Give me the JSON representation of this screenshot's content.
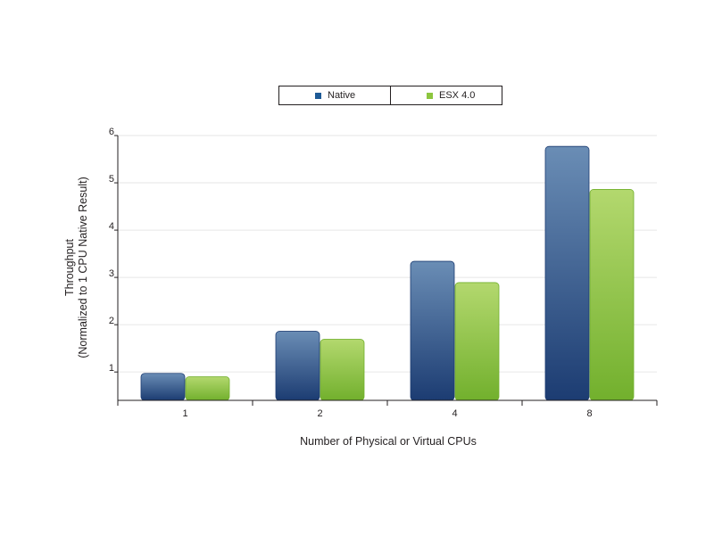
{
  "chart_data": {
    "type": "bar",
    "categories": [
      "1",
      "2",
      "4",
      "8"
    ],
    "series": [
      {
        "name": "Native",
        "values": [
          0.97,
          1.86,
          3.34,
          5.77
        ]
      },
      {
        "name": "ESX 4.0",
        "values": [
          0.9,
          1.69,
          2.89,
          4.86
        ]
      }
    ],
    "xlabel": "Number of Physical or Virtual CPUs",
    "ylabel_lines": [
      "Throughput",
      "(Normalized to 1 CPU Native Result)"
    ],
    "ylim": [
      0.4,
      6
    ],
    "yticks": [
      "1",
      "2",
      "3",
      "4",
      "5",
      "6"
    ],
    "grid": true,
    "legend_position": "top-center",
    "colors": {
      "native_top": "#6a8db5",
      "native_bottom": "#1c3c72",
      "esx_top": "#b3d86e",
      "esx_bottom": "#72b02d",
      "legend_native": "#1d5a96",
      "legend_esx": "#8dc63f",
      "grid": "#e6e6e6"
    }
  }
}
